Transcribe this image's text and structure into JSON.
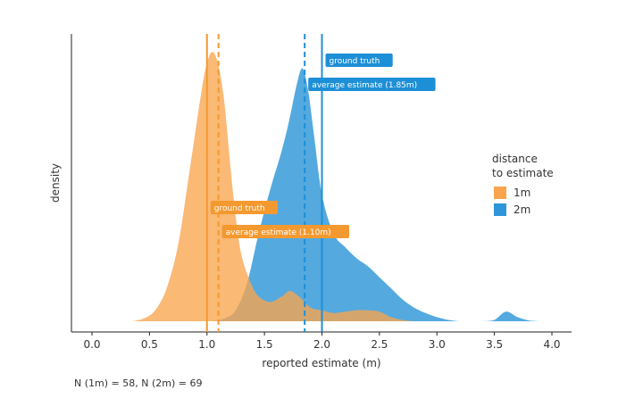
{
  "chart_data": {
    "type": "area",
    "title": "",
    "xlabel": "reported estimate (m)",
    "ylabel": "density",
    "xlim": [
      -0.2,
      4.2
    ],
    "xticks": [
      "0.0",
      "0.5",
      "1.0",
      "1.5",
      "2.0",
      "2.5",
      "3.0",
      "3.5",
      "4.0"
    ],
    "xtick_values": [
      0,
      0.5,
      1,
      1.5,
      2,
      2.5,
      3,
      3.5,
      4
    ],
    "legend": {
      "title_line1": "distance",
      "title_line2": "to estimate",
      "position": "right",
      "entries": [
        "1m",
        "2m"
      ]
    },
    "series": [
      {
        "name": "2m",
        "color": "#2e96d8",
        "fill_opacity": 0.82,
        "x": [
          1.05,
          1.15,
          1.25,
          1.35,
          1.45,
          1.55,
          1.65,
          1.72,
          1.78,
          1.83,
          1.88,
          1.93,
          2.0,
          2.1,
          2.2,
          2.3,
          2.4,
          2.5,
          2.6,
          2.7,
          2.8,
          2.9,
          3.0,
          3.1,
          3.2,
          3.3,
          3.4,
          3.5,
          3.6,
          3.7,
          3.8,
          3.9
        ],
        "values": [
          0.0,
          0.01,
          0.04,
          0.14,
          0.32,
          0.48,
          0.62,
          0.74,
          0.86,
          0.92,
          0.84,
          0.68,
          0.46,
          0.32,
          0.27,
          0.23,
          0.2,
          0.16,
          0.12,
          0.08,
          0.05,
          0.03,
          0.015,
          0.005,
          0.0,
          0.0,
          0.0,
          0.005,
          0.035,
          0.015,
          0.003,
          0.0
        ]
      },
      {
        "name": "1m",
        "color": "#f8a54e",
        "fill_opacity": 0.78,
        "x": [
          0.35,
          0.45,
          0.55,
          0.65,
          0.75,
          0.85,
          0.95,
          1.0,
          1.05,
          1.1,
          1.15,
          1.2,
          1.25,
          1.3,
          1.38,
          1.45,
          1.55,
          1.65,
          1.72,
          1.8,
          1.9,
          2.0,
          2.1,
          2.2,
          2.3,
          2.4,
          2.5,
          2.6,
          2.7,
          2.8,
          2.9
        ],
        "values": [
          0.0,
          0.01,
          0.04,
          0.12,
          0.28,
          0.55,
          0.83,
          0.94,
          0.98,
          0.93,
          0.8,
          0.58,
          0.38,
          0.24,
          0.14,
          0.09,
          0.07,
          0.09,
          0.11,
          0.09,
          0.05,
          0.04,
          0.03,
          0.035,
          0.04,
          0.04,
          0.035,
          0.015,
          0.005,
          0.0,
          0.0
        ]
      }
    ],
    "reference_lines": [
      {
        "series": "1m",
        "kind": "ground truth",
        "x": 1.0,
        "style": "solid",
        "color": "#f4992f"
      },
      {
        "series": "1m",
        "kind": "average estimate",
        "x": 1.1,
        "style": "dashed",
        "color": "#f4992f"
      },
      {
        "series": "2m",
        "kind": "average estimate",
        "x": 1.85,
        "style": "dashed",
        "color": "#1d8fd6"
      },
      {
        "series": "2m",
        "kind": "ground truth",
        "x": 2.0,
        "style": "solid",
        "color": "#1d8fd6"
      }
    ],
    "annotations": [
      {
        "text": "ground truth",
        "series": "2m",
        "x": 2.0,
        "color": "#1d8fd6"
      },
      {
        "text": "average estimate (1.85m)",
        "series": "2m",
        "x": 1.85,
        "color": "#1d8fd6"
      },
      {
        "text": "ground truth",
        "series": "1m",
        "x": 1.0,
        "color": "#f4992f"
      },
      {
        "text": "average estimate (1.10m)",
        "series": "1m",
        "x": 1.1,
        "color": "#f4992f"
      }
    ]
  },
  "footnote": "N (1m) = 58, N (2m) = 69"
}
